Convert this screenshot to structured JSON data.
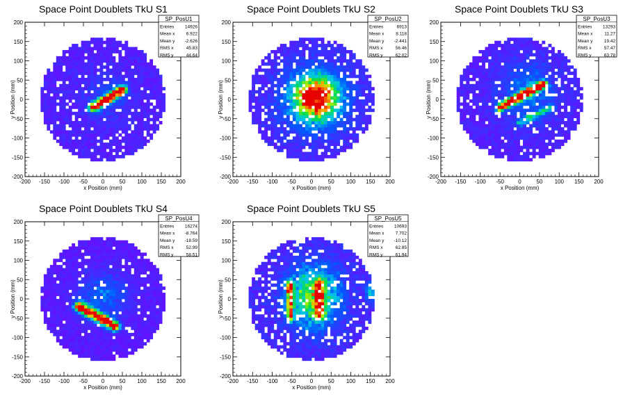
{
  "chart_data": [
    {
      "type": "heatmap",
      "title": "Space Point Doublets TkU S1",
      "xlabel": "x Position (mm)",
      "ylabel": "y Position (mm)",
      "xlim": [
        -200,
        200
      ],
      "ylim": [
        -200,
        200
      ],
      "xticks": [
        -200,
        -150,
        -100,
        -50,
        0,
        50,
        100,
        150,
        200
      ],
      "yticks": [
        -200,
        -150,
        -100,
        -50,
        0,
        50,
        100,
        150,
        200
      ],
      "colormap": "rainbow (violet low → red high)",
      "stats": {
        "name": "SP_PosU1",
        "rows": [
          [
            "Entries",
            "14926"
          ],
          [
            "Mean x",
            "6.922"
          ],
          [
            "Mean y",
            "-2.626"
          ],
          [
            "RMS x",
            "45.83"
          ],
          [
            "RMS y",
            "44.64"
          ]
        ]
      },
      "features": {
        "disk_radius": 160,
        "uniform": 0.12,
        "holes": 0.1,
        "bands": [
          {
            "x0": -25,
            "y0": -20,
            "x1": 50,
            "y1": 25,
            "width": 8,
            "amp": 1.0
          }
        ],
        "blobs": [
          {
            "cx": 10,
            "cy": 5,
            "sx": 40,
            "sy": 40,
            "amp": 0.12
          }
        ]
      }
    },
    {
      "type": "heatmap",
      "title": "Space Point Doublets TkU S2",
      "xlabel": "x Position (mm)",
      "ylabel": "y Position (mm)",
      "xlim": [
        -200,
        200
      ],
      "ylim": [
        -200,
        200
      ],
      "xticks": [
        -200,
        -150,
        -100,
        -50,
        0,
        50,
        100,
        150,
        200
      ],
      "yticks": [
        -200,
        -150,
        -100,
        -50,
        0,
        50,
        100,
        150,
        200
      ],
      "colormap": "rainbow (violet low → red high)",
      "stats": {
        "name": "SP_PosU2",
        "rows": [
          [
            "Entries",
            "6913"
          ],
          [
            "Mean x",
            "8.118"
          ],
          [
            "Mean y",
            "-2.441"
          ],
          [
            "RMS x",
            "56.46"
          ],
          [
            "RMS y",
            "62.02"
          ]
        ]
      },
      "features": {
        "disk_radius": 160,
        "uniform": 0.12,
        "holes": 0.16,
        "bands": [],
        "blobs": [
          {
            "cx": 10,
            "cy": 5,
            "sx": 35,
            "sy": 35,
            "amp": 0.9
          },
          {
            "cx": 10,
            "cy": 0,
            "sx": 70,
            "sy": 70,
            "amp": 0.25
          }
        ]
      }
    },
    {
      "type": "heatmap",
      "title": "Space Point Doublets TkU S3",
      "xlabel": "x Position (mm)",
      "ylabel": "y Position (mm)",
      "xlim": [
        -200,
        200
      ],
      "ylim": [
        -200,
        200
      ],
      "xticks": [
        -200,
        -150,
        -100,
        -50,
        0,
        50,
        100,
        150,
        200
      ],
      "yticks": [
        -200,
        -150,
        -100,
        -50,
        0,
        50,
        100,
        150,
        200
      ],
      "colormap": "rainbow (violet low → red high)",
      "stats": {
        "name": "SP_PosU3",
        "rows": [
          [
            "Entries",
            "13293"
          ],
          [
            "Mean x",
            "11.27"
          ],
          [
            "Mean y",
            "19.42"
          ],
          [
            "RMS x",
            "57.47"
          ],
          [
            "RMS y",
            "63.78"
          ]
        ]
      },
      "features": {
        "disk_radius": 160,
        "uniform": 0.12,
        "holes": 0.1,
        "bands": [
          {
            "x0": -50,
            "y0": -20,
            "x1": 60,
            "y1": 40,
            "width": 7,
            "amp": 1.0
          },
          {
            "x0": 0,
            "y0": -60,
            "x1": 80,
            "y1": -20,
            "width": 6,
            "amp": 0.35
          }
        ],
        "blobs": [
          {
            "cx": 20,
            "cy": 20,
            "sx": 50,
            "sy": 55,
            "amp": 0.22
          }
        ]
      }
    },
    {
      "type": "heatmap",
      "title": "Space Point Doublets TkU S4",
      "xlabel": "x Position (mm)",
      "ylabel": "y Position (mm)",
      "xlim": [
        -200,
        200
      ],
      "ylim": [
        -200,
        200
      ],
      "xticks": [
        -200,
        -150,
        -100,
        -50,
        0,
        50,
        100,
        150,
        200
      ],
      "yticks": [
        -200,
        -150,
        -100,
        -50,
        0,
        50,
        100,
        150,
        200
      ],
      "colormap": "rainbow (violet low → red high)",
      "stats": {
        "name": "SP_PosU4",
        "rows": [
          [
            "Entries",
            "16274"
          ],
          [
            "Mean x",
            "-8.764"
          ],
          [
            "Mean y",
            "-18.59"
          ],
          [
            "RMS x",
            "52.99"
          ],
          [
            "RMS y",
            "58.51"
          ]
        ]
      },
      "features": {
        "disk_radius": 160,
        "uniform": 0.1,
        "holes": 0.06,
        "bands": [
          {
            "x0": -60,
            "y0": -20,
            "x1": 30,
            "y1": -70,
            "width": 9,
            "amp": 1.0
          }
        ],
        "blobs": [
          {
            "cx": 0,
            "cy": 10,
            "sx": 45,
            "sy": 40,
            "amp": 0.22
          }
        ]
      }
    },
    {
      "type": "heatmap",
      "title": "Space Point Doublets TkU S5",
      "xlabel": "x Position (mm)",
      "ylabel": "y Position (mm)",
      "xlim": [
        -200,
        200
      ],
      "ylim": [
        -200,
        200
      ],
      "xticks": [
        -200,
        -150,
        -100,
        -50,
        0,
        50,
        100,
        150,
        200
      ],
      "yticks": [
        -200,
        -150,
        -100,
        -50,
        0,
        50,
        100,
        150,
        200
      ],
      "colormap": "rainbow (violet low → red high)",
      "stats": {
        "name": "SP_PosU5",
        "rows": [
          [
            "Entries",
            "10693"
          ],
          [
            "Mean x",
            "7.702"
          ],
          [
            "Mean y",
            "-10.12"
          ],
          [
            "RMS x",
            "62.85"
          ],
          [
            "RMS y",
            "61.94"
          ]
        ]
      },
      "features": {
        "disk_radius": 160,
        "uniform": 0.14,
        "holes": 0.14,
        "bands": [
          {
            "x0": -55,
            "y0": 40,
            "x1": -55,
            "y1": -50,
            "width": 6,
            "amp": 0.7
          },
          {
            "x0": 20,
            "y0": 40,
            "x1": 20,
            "y1": -40,
            "width": 8,
            "amp": 0.6
          }
        ],
        "blobs": [
          {
            "cx": 5,
            "cy": 5,
            "sx": 45,
            "sy": 55,
            "amp": 0.55
          },
          {
            "cx": 150,
            "cy": 20,
            "sx": 10,
            "sy": 15,
            "amp": 0.35
          }
        ]
      }
    }
  ]
}
